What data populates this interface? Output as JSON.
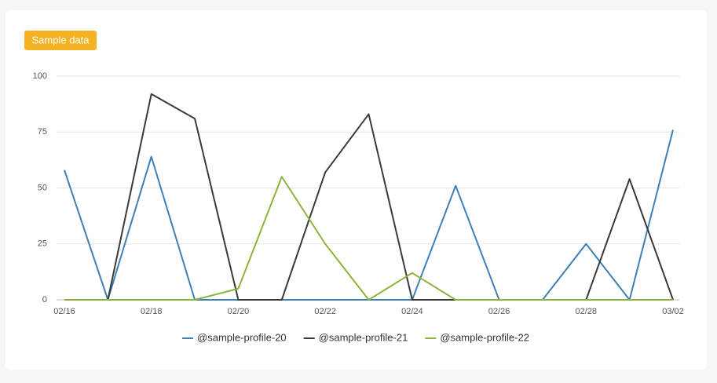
{
  "badge": "Sample data",
  "chart_data": {
    "type": "line",
    "categories": [
      "02/16",
      null,
      "02/18",
      null,
      "02/20",
      null,
      "02/22",
      null,
      "02/24",
      null,
      "02/26",
      null,
      "02/28",
      null,
      "03/02"
    ],
    "series": [
      {
        "name": "@sample-profile-20",
        "color": "#3d7fb8",
        "values": [
          58,
          0,
          64,
          0,
          0,
          0,
          0,
          0,
          0,
          51,
          0,
          0,
          25,
          0,
          76
        ]
      },
      {
        "name": "@sample-profile-21",
        "color": "#3a3a3a",
        "values": [
          0,
          0,
          92,
          81,
          0,
          0,
          57,
          83,
          0,
          0,
          0,
          0,
          0,
          54,
          0
        ]
      },
      {
        "name": "@sample-profile-22",
        "color": "#8db33a",
        "values": [
          0,
          0,
          0,
          0,
          5,
          55,
          25,
          0,
          12,
          0,
          0,
          0,
          0,
          0,
          0
        ]
      }
    ],
    "ylim": [
      0,
      100
    ],
    "yticks": [
      0,
      25,
      50,
      75,
      100
    ],
    "grid": true,
    "legend": "bottom"
  }
}
